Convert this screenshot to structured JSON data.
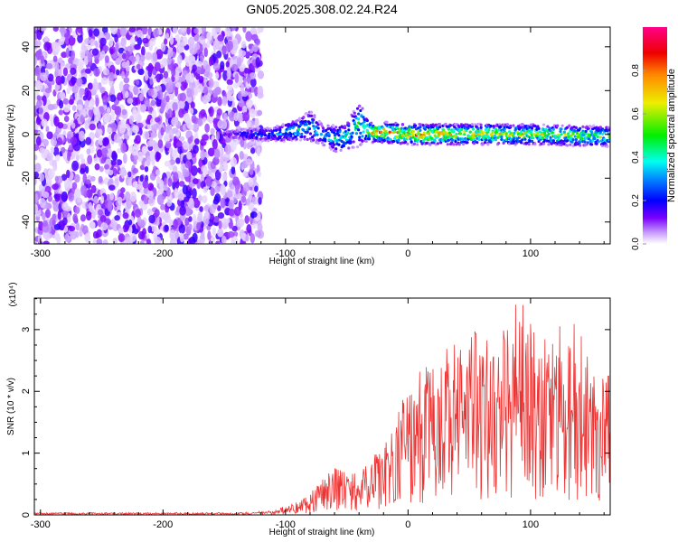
{
  "chart_data": [
    {
      "type": "heatmap",
      "title": "GN05.2025.308.02.24.R24",
      "xlabel": "Height of straight line (km)",
      "ylabel": "Frequency (Hz)",
      "xlim": [
        -305,
        165
      ],
      "ylim": [
        -50,
        49
      ],
      "xticks": [
        -300,
        -200,
        -100,
        0,
        100
      ],
      "xtick_labels": [
        "-300",
        "-200",
        "-100",
        "0",
        "100"
      ],
      "yticks": [
        -40,
        -20,
        0,
        20,
        40
      ],
      "ytick_labels": [
        "-40",
        "-20",
        "0",
        "20",
        "40"
      ],
      "colorbar": {
        "label": "Normalized spectral amplitude",
        "range": [
          0,
          1
        ],
        "ticks": [
          0.0,
          0.2,
          0.4,
          0.6,
          0.8
        ],
        "tick_labels": [
          "0.0",
          "0.2",
          "0.4",
          "0.6",
          "0.8"
        ]
      },
      "noise_region": {
        "x_range": [
          -305,
          -120
        ],
        "freq_range": [
          -50,
          49
        ],
        "amplitude_range": [
          0.0,
          0.25
        ]
      },
      "signal_band": {
        "x": [
          -150,
          -130,
          -110,
          -100,
          -90,
          -80,
          -70,
          -60,
          -50,
          -40,
          -35,
          -30,
          -20,
          0,
          50,
          100,
          165
        ],
        "center_hz": [
          0,
          0,
          0,
          1,
          2,
          4,
          0,
          -2,
          -1,
          5,
          3,
          1,
          1,
          0,
          0,
          0,
          -1
        ],
        "half_width_hz": [
          1,
          2,
          2,
          3,
          3,
          5,
          3,
          4,
          4,
          7,
          4,
          3,
          3,
          3,
          3,
          3,
          3
        ],
        "peak_amplitude": [
          0.2,
          0.3,
          0.35,
          0.4,
          0.45,
          0.4,
          0.4,
          0.45,
          0.5,
          0.5,
          0.7,
          0.8,
          0.9,
          0.9,
          0.8,
          0.7,
          0.6
        ]
      }
    },
    {
      "type": "line",
      "xlabel": "Height of straight line (km)",
      "ylabel": "SNR (10 * v/v)",
      "y_multiplier": "(x10⁴)",
      "xlim": [
        -305,
        165
      ],
      "ylim": [
        0,
        3.51
      ],
      "xticks": [
        -300,
        -200,
        -100,
        0,
        100
      ],
      "xtick_labels": [
        "-300",
        "-200",
        "-100",
        "0",
        "100"
      ],
      "yticks": [
        0,
        1,
        2,
        3
      ],
      "ytick_labels": [
        "0",
        "1",
        "2",
        "3"
      ],
      "color": "#ee3333",
      "x": [
        -305,
        -290,
        -270,
        -250,
        -230,
        -210,
        -190,
        -170,
        -150,
        -130,
        -110,
        -100,
        -90,
        -80,
        -70,
        -60,
        -50,
        -40,
        -30,
        -20,
        -10,
        0,
        10,
        20,
        30,
        40,
        50,
        60,
        70,
        80,
        90,
        100,
        110,
        120,
        130,
        140,
        150,
        160,
        165
      ],
      "mean": [
        0.02,
        0.02,
        0.02,
        0.02,
        0.02,
        0.02,
        0.02,
        0.02,
        0.02,
        0.02,
        0.03,
        0.08,
        0.12,
        0.2,
        0.35,
        0.45,
        0.4,
        0.35,
        0.5,
        0.6,
        0.9,
        1.1,
        1.25,
        1.4,
        1.5,
        1.55,
        1.6,
        1.6,
        1.65,
        1.65,
        1.7,
        1.6,
        1.6,
        1.55,
        1.5,
        1.5,
        1.45,
        1.4,
        1.4
      ],
      "peak": [
        0.04,
        0.04,
        0.04,
        0.04,
        0.04,
        0.04,
        0.04,
        0.04,
        0.04,
        0.05,
        0.07,
        0.2,
        0.35,
        0.55,
        0.9,
        0.8,
        0.7,
        0.8,
        1.0,
        1.4,
        1.7,
        2.0,
        2.4,
        2.7,
        3.0,
        3.0,
        3.2,
        3.1,
        3.3,
        3.2,
        3.5,
        3.3,
        3.1,
        3.2,
        3.0,
        3.2,
        3.0,
        2.9,
        3.1
      ]
    }
  ]
}
